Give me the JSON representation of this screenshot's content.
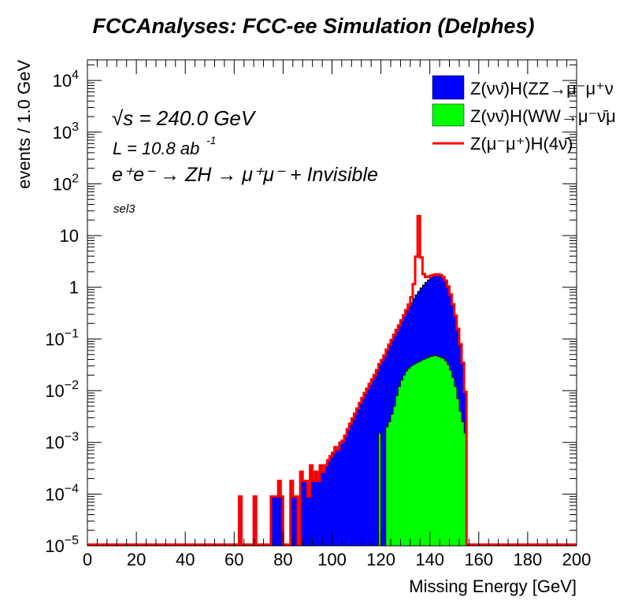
{
  "page": {
    "title": "FCCAnalyses: FCC-ee Simulation (Delphes)"
  },
  "annotations": {
    "sqrt_s": "√s = 240.0 GeV",
    "lumi_label": "L = 10.8 ab",
    "lumi_exp": "-1",
    "process": "e⁺e⁻ → ZH → μ⁺μ⁻ + Invisible",
    "selection": "sel3"
  },
  "chart_data": {
    "type": "histogram",
    "title": "FCCAnalyses: FCC-ee Simulation (Delphes)",
    "xlabel": "Missing Energy [GeV]",
    "ylabel": "events / 1.0 GeV",
    "xlim": [
      0,
      200
    ],
    "ylim": [
      1e-05,
      25000
    ],
    "yscale": "log",
    "bin_width": 1.0,
    "x_ticks": [
      0,
      20,
      40,
      60,
      80,
      100,
      120,
      140,
      160,
      180,
      200
    ],
    "y_ticks": [
      {
        "value": 1e-05,
        "label": "10",
        "exp": "−5"
      },
      {
        "value": 0.0001,
        "label": "10",
        "exp": "−4"
      },
      {
        "value": 0.001,
        "label": "10",
        "exp": "−3"
      },
      {
        "value": 0.01,
        "label": "10",
        "exp": "−2"
      },
      {
        "value": 0.1,
        "label": "10",
        "exp": "−1"
      },
      {
        "value": 1,
        "label": "1",
        "exp": ""
      },
      {
        "value": 10,
        "label": "10",
        "exp": ""
      },
      {
        "value": 100,
        "label": "10",
        "exp": "2"
      },
      {
        "value": 1000,
        "label": "10",
        "exp": "3"
      },
      {
        "value": 10000,
        "label": "10",
        "exp": "4"
      }
    ],
    "grid": false,
    "legend_position": "top-right",
    "stack_order": [
      "ZZ",
      "WW"
    ],
    "series": [
      {
        "key": "ZZ",
        "name": "Z(νν̄)H(ZZ→μ⁻μ⁺ν",
        "color": "#0000ff",
        "style": "filled-stack",
        "bins": [
          [
            62,
            9e-05
          ],
          [
            63,
            0
          ],
          [
            68,
            9e-05
          ],
          [
            69,
            0
          ],
          [
            75,
            9e-05
          ],
          [
            76,
            9e-05
          ],
          [
            77,
            9e-05
          ],
          [
            78,
            0.00018
          ],
          [
            79,
            9e-05
          ],
          [
            80,
            0
          ],
          [
            83,
            0.00018
          ],
          [
            84,
            9e-05
          ],
          [
            85,
            9e-05
          ],
          [
            87,
            0.00027
          ],
          [
            88,
            0.00018
          ],
          [
            89,
            0.00018
          ],
          [
            90,
            9e-05
          ],
          [
            91,
            0.00036
          ],
          [
            92,
            0.00018
          ],
          [
            93,
            0.00027
          ],
          [
            94,
            0.00018
          ],
          [
            95,
            0.00036
          ],
          [
            96,
            0.00027
          ],
          [
            97,
            0.00036
          ],
          [
            98,
            0.00045
          ],
          [
            99,
            0.00054
          ],
          [
            100,
            0.00063
          ],
          [
            101,
            0.00081
          ],
          [
            102,
            0.00072
          ],
          [
            103,
            0.00099
          ],
          [
            104,
            0.00108
          ],
          [
            105,
            0.00135
          ],
          [
            106,
            0.0018
          ],
          [
            107,
            0.0023
          ],
          [
            108,
            0.0029
          ],
          [
            109,
            0.0036
          ],
          [
            110,
            0.0045
          ],
          [
            111,
            0.0058
          ],
          [
            112,
            0.0072
          ],
          [
            113,
            0.009
          ],
          [
            114,
            0.011
          ],
          [
            115,
            0.0135
          ],
          [
            116,
            0.0165
          ],
          [
            117,
            0.02
          ],
          [
            118,
            0.025
          ],
          [
            119,
            0.031
          ],
          [
            120,
            0.039
          ],
          [
            121,
            0.048
          ],
          [
            122,
            0.06
          ],
          [
            123,
            0.075
          ],
          [
            124,
            0.092
          ],
          [
            125,
            0.115
          ],
          [
            126,
            0.14
          ],
          [
            127,
            0.17
          ],
          [
            128,
            0.21
          ],
          [
            129,
            0.26
          ],
          [
            130,
            0.32
          ],
          [
            131,
            0.39
          ],
          [
            132,
            0.47
          ],
          [
            133,
            0.57
          ],
          [
            134,
            0.68
          ],
          [
            135,
            0.8
          ],
          [
            136,
            0.93
          ],
          [
            137,
            1.06
          ],
          [
            138,
            1.2
          ],
          [
            139,
            1.34
          ],
          [
            140,
            1.47
          ],
          [
            141,
            1.58
          ],
          [
            142,
            1.67
          ],
          [
            143,
            1.7
          ],
          [
            144,
            1.65
          ],
          [
            145,
            1.52
          ],
          [
            146,
            1.3
          ],
          [
            147,
            1.0
          ],
          [
            148,
            0.7
          ],
          [
            149,
            0.45
          ],
          [
            150,
            0.27
          ],
          [
            151,
            0.15
          ],
          [
            152,
            0.075
          ],
          [
            153,
            0.032
          ],
          [
            154,
            0.008
          ]
        ]
      },
      {
        "key": "WW",
        "name": "Z(νν̄)H(WW→μ⁻ν̄μ",
        "color": "#00ff00",
        "style": "filled-stack",
        "bins": [
          [
            119,
            0.0015
          ],
          [
            120,
            0
          ],
          [
            121,
            0
          ],
          [
            122,
            0.002
          ],
          [
            123,
            0.0025
          ],
          [
            124,
            0.0035
          ],
          [
            125,
            0.005
          ],
          [
            126,
            0.008
          ],
          [
            127,
            0.012
          ],
          [
            128,
            0.016
          ],
          [
            129,
            0.02
          ],
          [
            130,
            0.024
          ],
          [
            131,
            0.027
          ],
          [
            132,
            0.03
          ],
          [
            133,
            0.032
          ],
          [
            134,
            0.034
          ],
          [
            135,
            0.036
          ],
          [
            136,
            0.038
          ],
          [
            137,
            0.04
          ],
          [
            138,
            0.042
          ],
          [
            139,
            0.044
          ],
          [
            140,
            0.046
          ],
          [
            141,
            0.047
          ],
          [
            142,
            0.048
          ],
          [
            143,
            0.046
          ],
          [
            144,
            0.044
          ],
          [
            145,
            0.042
          ],
          [
            146,
            0.038
          ],
          [
            147,
            0.032
          ],
          [
            148,
            0.025
          ],
          [
            149,
            0.018
          ],
          [
            150,
            0.012
          ],
          [
            151,
            0.007
          ],
          [
            152,
            0.004
          ],
          [
            153,
            0.0025
          ],
          [
            154,
            0.0015
          ]
        ]
      },
      {
        "key": "4nu",
        "name": "Z(μ⁻μ⁺)H(4ν̄)",
        "color": "#ff0000",
        "style": "line-stacked-total",
        "bins": [
          [
            124,
            0.0004
          ],
          [
            125,
            0.0006
          ],
          [
            126,
            0.0009
          ],
          [
            127,
            0.0015
          ],
          [
            128,
            0.003
          ],
          [
            129,
            0.007
          ],
          [
            130,
            0.017
          ],
          [
            131,
            0.045
          ],
          [
            132,
            0.14
          ],
          [
            133,
            0.55
          ],
          [
            134,
            3.2
          ],
          [
            135,
            23.0
          ],
          [
            136,
            2.8
          ],
          [
            137,
            0.7
          ],
          [
            138,
            0.34
          ],
          [
            139,
            0.22
          ],
          [
            140,
            0.15
          ],
          [
            141,
            0.1
          ],
          [
            142,
            0.06
          ],
          [
            143,
            0.035
          ],
          [
            144,
            0.02
          ],
          [
            145,
            0.012
          ],
          [
            146,
            0.006
          ],
          [
            147,
            0.003
          ]
        ]
      }
    ]
  }
}
